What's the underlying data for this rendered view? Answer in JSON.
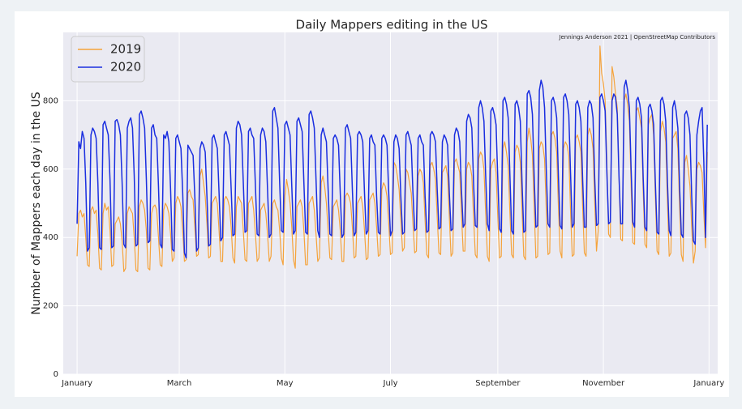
{
  "chart_data": {
    "type": "line",
    "title": "Daily Mappers editing in the US",
    "annotation": "Jennings Anderson 2021 | OpenStreetMap Contributors",
    "ylabel": "Number of Mappers each day in the US",
    "xlim": [
      -8,
      370
    ],
    "ylim": [
      0,
      1000
    ],
    "xticks": [
      {
        "value": 0,
        "label": "January"
      },
      {
        "value": 59,
        "label": "March"
      },
      {
        "value": 120,
        "label": "May"
      },
      {
        "value": 181,
        "label": "July"
      },
      {
        "value": 243,
        "label": "September"
      },
      {
        "value": 304,
        "label": "November"
      },
      {
        "value": 365,
        "label": "January"
      }
    ],
    "yticks": [
      0,
      200,
      400,
      600,
      800
    ],
    "grid": true,
    "legend": "upper left",
    "x": [
      0,
      1,
      2,
      3,
      4,
      5,
      6,
      7,
      8,
      9,
      10,
      11,
      12,
      13,
      14,
      15,
      16,
      17,
      18,
      19,
      20,
      21,
      22,
      23,
      24,
      25,
      26,
      27,
      28,
      29,
      30,
      31,
      32,
      33,
      34,
      35,
      36,
      37,
      38,
      39,
      40,
      41,
      42,
      43,
      44,
      45,
      46,
      47,
      48,
      49,
      50,
      51,
      52,
      53,
      54,
      55,
      56,
      57,
      58,
      59,
      60,
      61,
      62,
      63,
      64,
      65,
      66,
      67,
      68,
      69,
      70,
      71,
      72,
      73,
      74,
      75,
      76,
      77,
      78,
      79,
      80,
      81,
      82,
      83,
      84,
      85,
      86,
      87,
      88,
      89,
      90,
      91,
      92,
      93,
      94,
      95,
      96,
      97,
      98,
      99,
      100,
      101,
      102,
      103,
      104,
      105,
      106,
      107,
      108,
      109,
      110,
      111,
      112,
      113,
      114,
      115,
      116,
      117,
      118,
      119,
      120,
      121,
      122,
      123,
      124,
      125,
      126,
      127,
      128,
      129,
      130,
      131,
      132,
      133,
      134,
      135,
      136,
      137,
      138,
      139,
      140,
      141,
      142,
      143,
      144,
      145,
      146,
      147,
      148,
      149,
      150,
      151,
      152,
      153,
      154,
      155,
      156,
      157,
      158,
      159,
      160,
      161,
      162,
      163,
      164,
      165,
      166,
      167,
      168,
      169,
      170,
      171,
      172,
      173,
      174,
      175,
      176,
      177,
      178,
      179,
      180,
      181,
      182,
      183,
      184,
      185,
      186,
      187,
      188,
      189,
      190,
      191,
      192,
      193,
      194,
      195,
      196,
      197,
      198,
      199,
      200,
      201,
      202,
      203,
      204,
      205,
      206,
      207,
      208,
      209,
      210,
      211,
      212,
      213,
      214,
      215,
      216,
      217,
      218,
      219,
      220,
      221,
      222,
      223,
      224,
      225,
      226,
      227,
      228,
      229,
      230,
      231,
      232,
      233,
      234,
      235,
      236,
      237,
      238,
      239,
      240,
      241,
      242,
      243,
      244,
      245,
      246,
      247,
      248,
      249,
      250,
      251,
      252,
      253,
      254,
      255,
      256,
      257,
      258,
      259,
      260,
      261,
      262,
      263,
      264,
      265,
      266,
      267,
      268,
      269,
      270,
      271,
      272,
      273,
      274,
      275,
      276,
      277,
      278,
      279,
      280,
      281,
      282,
      283,
      284,
      285,
      286,
      287,
      288,
      289,
      290,
      291,
      292,
      293,
      294,
      295,
      296,
      297,
      298,
      299,
      300,
      301,
      302,
      303,
      304,
      305,
      306,
      307,
      308,
      309,
      310,
      311,
      312,
      313,
      314,
      315,
      316,
      317,
      318,
      319,
      320,
      321,
      322,
      323,
      324,
      325,
      326,
      327,
      328,
      329,
      330,
      331,
      332,
      333,
      334,
      335,
      336,
      337,
      338,
      339,
      340,
      341,
      342,
      343,
      344,
      345,
      346,
      347,
      348,
      349,
      350,
      351,
      352,
      353,
      354,
      355,
      356,
      357,
      358,
      359,
      360,
      361,
      362,
      363,
      364
    ],
    "series": [
      {
        "name": "2019",
        "color": "#f5a33b",
        "values": [
          345,
          470,
          480,
          460,
          470,
          400,
          320,
          315,
          480,
          490,
          470,
          480,
          410,
          310,
          305,
          470,
          500,
          480,
          490,
          420,
          315,
          320,
          440,
          450,
          460,
          440,
          390,
          300,
          310,
          470,
          490,
          480,
          470,
          400,
          305,
          300,
          490,
          510,
          500,
          480,
          420,
          310,
          305,
          470,
          490,
          495,
          480,
          400,
          320,
          315,
          480,
          500,
          490,
          470,
          410,
          330,
          340,
          500,
          520,
          510,
          490,
          420,
          330,
          335,
          530,
          540,
          520,
          510,
          430,
          345,
          350,
          580,
          600,
          560,
          520,
          440,
          340,
          345,
          500,
          510,
          520,
          500,
          420,
          330,
          330,
          510,
          520,
          510,
          490,
          430,
          340,
          325,
          490,
          520,
          510,
          500,
          420,
          335,
          330,
          500,
          510,
          520,
          480,
          410,
          330,
          340,
          480,
          490,
          500,
          470,
          410,
          330,
          345,
          500,
          510,
          490,
          480,
          420,
          340,
          320,
          520,
          570,
          540,
          500,
          430,
          335,
          310,
          490,
          500,
          510,
          490,
          420,
          320,
          320,
          500,
          510,
          520,
          480,
          410,
          330,
          340,
          560,
          580,
          550,
          500,
          420,
          340,
          335,
          490,
          500,
          510,
          480,
          420,
          330,
          330,
          520,
          530,
          520,
          500,
          430,
          340,
          345,
          500,
          510,
          520,
          490,
          420,
          335,
          340,
          510,
          520,
          530,
          500,
          430,
          345,
          350,
          540,
          560,
          550,
          520,
          440,
          350,
          355,
          620,
          610,
          580,
          540,
          450,
          360,
          370,
          600,
          590,
          560,
          530,
          440,
          355,
          360,
          580,
          600,
          590,
          560,
          450,
          350,
          340,
          610,
          620,
          600,
          570,
          460,
          355,
          350,
          590,
          600,
          610,
          580,
          460,
          345,
          355,
          620,
          630,
          610,
          590,
          470,
          360,
          360,
          600,
          620,
          610,
          580,
          460,
          350,
          340,
          630,
          650,
          640,
          600,
          470,
          345,
          330,
          600,
          620,
          630,
          590,
          460,
          340,
          345,
          660,
          680,
          650,
          610,
          470,
          350,
          340,
          650,
          670,
          660,
          620,
          480,
          345,
          335,
          680,
          720,
          690,
          640,
          490,
          340,
          345,
          660,
          680,
          670,
          630,
          480,
          350,
          355,
          700,
          710,
          690,
          650,
          490,
          360,
          340,
          660,
          680,
          670,
          640,
          480,
          345,
          350,
          690,
          700,
          680,
          650,
          490,
          355,
          345,
          700,
          720,
          700,
          660,
          500,
          360,
          420,
          960,
          880,
          850,
          800,
          620,
          410,
          400,
          900,
          870,
          820,
          780,
          580,
          395,
          390,
          800,
          820,
          790,
          740,
          550,
          385,
          380,
          770,
          780,
          750,
          720,
          530,
          380,
          370,
          730,
          750,
          760,
          700,
          520,
          360,
          350,
          710,
          740,
          720,
          680,
          500,
          345,
          355,
          690,
          700,
          710,
          660,
          490,
          350,
          330,
          620,
          640,
          600,
          550,
          430,
          325,
          360,
          600,
          620,
          610,
          590,
          470,
          370,
          650
        ]
      },
      {
        "name": "2020",
        "color": "#1a2ee0",
        "values": [
          440,
          680,
          660,
          710,
          690,
          560,
          360,
          370,
          700,
          720,
          710,
          690,
          560,
          370,
          365,
          730,
          740,
          720,
          700,
          570,
          370,
          375,
          740,
          745,
          730,
          700,
          560,
          380,
          370,
          720,
          740,
          750,
          720,
          580,
          375,
          380,
          760,
          770,
          750,
          720,
          570,
          385,
          390,
          720,
          730,
          700,
          690,
          550,
          380,
          370,
          700,
          690,
          710,
          680,
          540,
          365,
          360,
          690,
          700,
          680,
          660,
          530,
          355,
          340,
          670,
          660,
          650,
          640,
          520,
          360,
          370,
          660,
          680,
          670,
          650,
          520,
          375,
          380,
          690,
          700,
          680,
          660,
          530,
          390,
          400,
          700,
          710,
          690,
          670,
          540,
          405,
          410,
          720,
          740,
          730,
          700,
          560,
          415,
          420,
          710,
          720,
          700,
          690,
          550,
          410,
          405,
          700,
          720,
          710,
          680,
          540,
          400,
          410,
          770,
          780,
          750,
          720,
          560,
          420,
          415,
          730,
          740,
          720,
          700,
          550,
          410,
          420,
          740,
          750,
          730,
          710,
          560,
          415,
          410,
          760,
          770,
          750,
          720,
          570,
          420,
          400,
          700,
          720,
          700,
          680,
          540,
          410,
          405,
          690,
          700,
          690,
          670,
          530,
          400,
          410,
          720,
          730,
          710,
          690,
          540,
          405,
          415,
          700,
          710,
          700,
          680,
          530,
          410,
          420,
          690,
          700,
          680,
          670,
          520,
          415,
          410,
          690,
          700,
          690,
          670,
          530,
          405,
          420,
          680,
          700,
          690,
          660,
          520,
          410,
          415,
          700,
          710,
          690,
          670,
          530,
          420,
          425,
          690,
          700,
          680,
          670,
          520,
          415,
          420,
          700,
          710,
          700,
          680,
          540,
          425,
          430,
          680,
          700,
          690,
          670,
          530,
          420,
          425,
          700,
          720,
          710,
          680,
          540,
          430,
          440,
          740,
          760,
          750,
          720,
          560,
          435,
          430,
          780,
          800,
          780,
          740,
          580,
          440,
          420,
          770,
          780,
          760,
          730,
          570,
          425,
          415,
          800,
          810,
          790,
          750,
          580,
          420,
          410,
          790,
          800,
          780,
          740,
          560,
          415,
          420,
          820,
          830,
          810,
          760,
          580,
          430,
          435,
          830,
          860,
          840,
          780,
          600,
          440,
          430,
          800,
          810,
          790,
          750,
          580,
          435,
          425,
          810,
          820,
          800,
          760,
          590,
          430,
          440,
          790,
          800,
          780,
          740,
          570,
          430,
          430,
          780,
          800,
          790,
          750,
          570,
          435,
          440,
          810,
          820,
          800,
          770,
          590,
          440,
          445,
          800,
          820,
          810,
          760,
          580,
          440,
          440,
          840,
          860,
          830,
          780,
          600,
          445,
          430,
          800,
          810,
          790,
          750,
          570,
          430,
          420,
          780,
          790,
          770,
          730,
          560,
          415,
          410,
          800,
          810,
          790,
          740,
          560,
          420,
          405,
          780,
          800,
          770,
          720,
          550,
          410,
          400,
          760,
          770,
          750,
          700,
          520,
          390,
          380,
          700,
          740,
          770,
          780,
          620,
          400,
          730
        ]
      }
    ]
  }
}
